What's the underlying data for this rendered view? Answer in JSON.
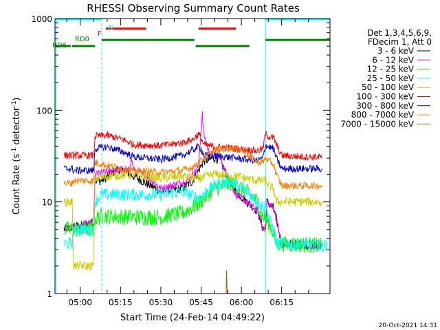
{
  "chart_data": {
    "type": "line",
    "title": "RHESSI Observing Summary Count Rates",
    "xlabel": "Start Time (24-Feb-14 04:49:22)",
    "ylabel_main": "Count Rate (s",
    "ylabel_sup1": "-1",
    "ylabel_mid": " detector",
    "ylabel_sup2": "-1",
    "ylabel_end": ")",
    "yscale": "log",
    "ylim": [
      1,
      1000
    ],
    "xlim_minutes": [
      -9.4,
      93
    ],
    "y_ticks": [
      {
        "value": 1,
        "label": "1"
      },
      {
        "value": 10,
        "label": "10"
      },
      {
        "value": 100,
        "label": "100"
      },
      {
        "value": 1000,
        "label": "1000"
      }
    ],
    "x_ticks": [
      {
        "value": 0,
        "label": "05:00"
      },
      {
        "value": 15,
        "label": "05:15"
      },
      {
        "value": 30,
        "label": "05:30"
      },
      {
        "value": 45,
        "label": "05:45"
      },
      {
        "value": 60,
        "label": "06:00"
      },
      {
        "value": 75,
        "label": "06:15"
      }
    ],
    "legend_header": [
      "Det 1,3,4,5,6,9,",
      "FDecim 1, Att 0"
    ],
    "footer_date": "20-Oct-2021 14:31",
    "flag_labels": {
      "night": "N",
      "flare": "F",
      "rd0": "RD0",
      "rd6": "RD6"
    },
    "flags": {
      "night": {
        "color": "#00ffff",
        "segments": [
          [
            -9.4,
            8
          ],
          [
            69,
            93
          ]
        ],
        "y": 1000
      },
      "flare": {
        "color": "#ff0000",
        "segments": [
          [
            9.5,
            24.5
          ],
          [
            44,
            58
          ]
        ],
        "y": 790
      },
      "rd0": {
        "color": "#008000",
        "segments": [
          [
            8,
            42.5
          ],
          [
            69,
            93
          ]
        ],
        "y": 595
      },
      "rd6": {
        "color": "#008000",
        "segments": [
          [
            -9.4,
            -3.5
          ],
          [
            -3,
            5.5
          ],
          [
            43,
            63
          ]
        ],
        "y": 510
      }
    },
    "saa_lines_minutes": [
      8,
      69,
      93
    ],
    "series": [
      {
        "name": "3 - 6 keV",
        "color": "#000000",
        "points": [
          [
            -6,
            5
          ],
          [
            5,
            6
          ],
          [
            5.5,
            17
          ],
          [
            8,
            17
          ],
          [
            14,
            23
          ],
          [
            20,
            19
          ],
          [
            30,
            13
          ],
          [
            38,
            14
          ],
          [
            42,
            17
          ],
          [
            44,
            22
          ],
          [
            46,
            28
          ],
          [
            50,
            30
          ],
          [
            52,
            29
          ],
          [
            55,
            18
          ],
          [
            58,
            13
          ],
          [
            62,
            10
          ],
          [
            66,
            8
          ],
          [
            68,
            5.2
          ],
          [
            69,
            5.2
          ],
          [
            69.5,
            10
          ],
          [
            72,
            8.5
          ],
          [
            73,
            6.5
          ],
          [
            75,
            3.5
          ],
          [
            84,
            3.4
          ],
          [
            90,
            3.3
          ]
        ],
        "noise": 0.05
      },
      {
        "name": "6 - 12 keV",
        "color": "#ff00ff",
        "points": [
          [
            -6,
            5
          ],
          [
            5,
            6
          ],
          [
            5.5,
            20
          ],
          [
            8,
            21
          ],
          [
            14,
            22
          ],
          [
            18,
            22
          ],
          [
            19,
            30
          ],
          [
            20,
            22
          ],
          [
            25,
            19
          ],
          [
            30,
            14
          ],
          [
            40,
            17
          ],
          [
            44,
            24
          ],
          [
            45,
            60
          ],
          [
            45.5,
            90
          ],
          [
            46,
            55
          ],
          [
            48,
            34
          ],
          [
            52,
            31
          ],
          [
            55,
            18
          ],
          [
            58,
            12
          ],
          [
            62,
            10
          ],
          [
            66,
            8
          ],
          [
            68,
            5.2
          ],
          [
            69,
            5.2
          ],
          [
            69.5,
            10
          ],
          [
            72,
            8.5
          ],
          [
            73,
            6.5
          ],
          [
            75,
            3.5
          ],
          [
            84,
            3.4
          ],
          [
            90,
            3.3
          ]
        ],
        "noise": 0.04
      },
      {
        "name": "12 - 25 keV",
        "color": "#00ff00",
        "points": [
          [
            -6,
            5
          ],
          [
            5,
            5
          ],
          [
            5.5,
            6.5
          ],
          [
            8,
            7
          ],
          [
            20,
            6.8
          ],
          [
            30,
            6.8
          ],
          [
            38,
            7.5
          ],
          [
            44,
            9.5
          ],
          [
            50,
            14
          ],
          [
            56,
            16
          ],
          [
            62,
            13
          ],
          [
            66,
            10
          ],
          [
            68,
            6.8
          ],
          [
            69,
            6.8
          ],
          [
            70,
            6
          ],
          [
            72,
            4.5
          ],
          [
            73,
            3.5
          ],
          [
            75,
            3.5
          ],
          [
            84,
            3.4
          ],
          [
            90,
            3.3
          ]
        ],
        "noise": 0.09
      },
      {
        "name": "25 - 50 keV",
        "color": "#00ffff",
        "points": [
          [
            -6,
            3.5
          ],
          [
            -3,
            3.5
          ],
          [
            -2.5,
            5
          ],
          [
            5,
            5
          ],
          [
            5.5,
            10
          ],
          [
            8,
            12
          ],
          [
            20,
            12
          ],
          [
            30,
            12
          ],
          [
            38,
            13
          ],
          [
            44,
            11
          ],
          [
            50,
            15
          ],
          [
            56,
            17
          ],
          [
            62,
            13
          ],
          [
            66,
            10
          ],
          [
            68,
            9
          ],
          [
            69,
            9
          ],
          [
            70,
            7
          ],
          [
            72,
            5
          ],
          [
            73,
            3.5
          ],
          [
            85,
            3.4
          ],
          [
            92,
            3.3
          ]
        ],
        "noise": 0.07
      },
      {
        "name": "50 - 100 keV",
        "color": "#cccc00",
        "points": [
          [
            -6,
            10
          ],
          [
            -3,
            10
          ],
          [
            -2.5,
            2
          ],
          [
            5,
            2
          ],
          [
            5.5,
            18
          ],
          [
            10,
            19
          ],
          [
            20,
            20
          ],
          [
            30,
            18
          ],
          [
            38,
            19
          ],
          [
            44,
            18
          ],
          [
            50,
            20
          ],
          [
            58,
            19
          ],
          [
            66,
            17
          ],
          [
            69,
            17
          ],
          [
            70,
            15
          ],
          [
            72,
            14
          ],
          [
            73,
            10
          ],
          [
            80,
            10
          ],
          [
            90,
            10
          ]
        ],
        "noise": 0.05
      },
      {
        "name": "100 - 300 keV",
        "color": "#ff0000",
        "points": [
          [
            -6,
            32
          ],
          [
            -3,
            32
          ],
          [
            -2.5,
            32
          ],
          [
            5,
            32
          ],
          [
            5.5,
            52
          ],
          [
            10,
            53
          ],
          [
            16,
            48
          ],
          [
            20,
            42
          ],
          [
            30,
            41
          ],
          [
            38,
            44
          ],
          [
            42,
            48
          ],
          [
            44,
            55
          ],
          [
            45,
            50
          ],
          [
            46,
            42
          ],
          [
            50,
            40
          ],
          [
            58,
            38
          ],
          [
            66,
            36
          ],
          [
            68,
            38
          ],
          [
            69,
            55
          ],
          [
            70,
            52
          ],
          [
            72,
            50
          ],
          [
            73,
            42
          ],
          [
            75,
            32
          ],
          [
            84,
            31
          ],
          [
            90,
            31
          ]
        ],
        "noise": 0.04
      },
      {
        "name": "300 - 800 keV",
        "color": "#0000cc",
        "points": [
          [
            -6,
            23
          ],
          [
            -3,
            23
          ],
          [
            -2.5,
            22
          ],
          [
            5,
            22
          ],
          [
            5.5,
            38
          ],
          [
            10,
            40
          ],
          [
            16,
            35
          ],
          [
            20,
            31
          ],
          [
            30,
            29
          ],
          [
            38,
            32
          ],
          [
            42,
            37
          ],
          [
            44,
            40
          ],
          [
            45,
            38
          ],
          [
            46,
            32
          ],
          [
            50,
            32
          ],
          [
            58,
            30
          ],
          [
            66,
            28
          ],
          [
            68,
            30
          ],
          [
            69,
            42
          ],
          [
            70,
            40
          ],
          [
            72,
            38
          ],
          [
            73,
            30
          ],
          [
            75,
            23
          ],
          [
            84,
            23
          ],
          [
            90,
            23
          ]
        ],
        "noise": 0.04
      },
      {
        "name": "800 - 7000 keV",
        "color": "#ff8000",
        "points": [
          [
            -6,
            16
          ],
          [
            -3,
            16
          ],
          [
            -2.5,
            17
          ],
          [
            5,
            17
          ],
          [
            5.5,
            27
          ],
          [
            10,
            25
          ],
          [
            16,
            23
          ],
          [
            20,
            22
          ],
          [
            30,
            21
          ],
          [
            38,
            22
          ],
          [
            42,
            24
          ],
          [
            44,
            27
          ],
          [
            50,
            36
          ],
          [
            56,
            39
          ],
          [
            60,
            37
          ],
          [
            66,
            27
          ],
          [
            68,
            27
          ],
          [
            69,
            30
          ],
          [
            70,
            28
          ],
          [
            72,
            26
          ],
          [
            73,
            20
          ],
          [
            75,
            15
          ],
          [
            84,
            15
          ],
          [
            90,
            15
          ]
        ],
        "noise": 0.04
      },
      {
        "name": "7000 - 15000 keV",
        "color": "#8b6914",
        "points": [
          [
            54.3,
            1
          ],
          [
            54.5,
            1.8
          ],
          [
            54.7,
            1
          ]
        ],
        "noise": 0
      }
    ]
  }
}
